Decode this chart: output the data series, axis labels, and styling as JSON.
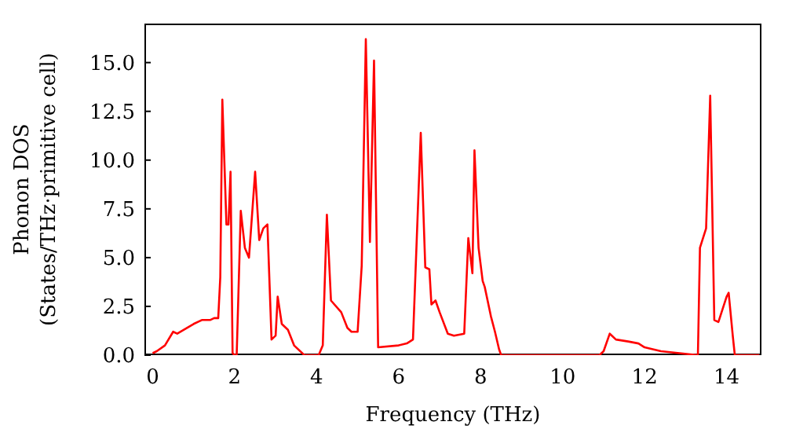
{
  "chart_data": {
    "type": "line",
    "xlabel": "Frequency (THz)",
    "ylabel": "Phonon DOS\n(States/THz·primitive cell)",
    "xlim": [
      -0.2,
      14.85
    ],
    "xticks": [
      0,
      2,
      4,
      6,
      8,
      10,
      12,
      14
    ],
    "ylim": [
      0,
      17
    ],
    "yticks": [
      {
        "value": 0,
        "label": "0.0"
      },
      {
        "value": 2.5,
        "label": "2.5"
      },
      {
        "value": 5,
        "label": "5.0"
      },
      {
        "value": 7.5,
        "label": "7.5"
      },
      {
        "value": 10,
        "label": "10.0"
      },
      {
        "value": 12.5,
        "label": "12.5"
      },
      {
        "value": 15,
        "label": "15.0"
      }
    ],
    "grid": false,
    "legend": false,
    "marker": "none",
    "line_style": "solid",
    "series": [
      {
        "color": "#ff0000",
        "x": [
          0,
          0.1,
          0.3,
          0.5,
          0.6,
          1.0,
          1.2,
          1.4,
          1.5,
          1.6,
          1.65,
          1.7,
          1.8,
          1.85,
          1.9,
          1.95,
          2.0,
          2.05,
          2.15,
          2.25,
          2.35,
          2.5,
          2.6,
          2.7,
          2.8,
          2.9,
          3.0,
          3.05,
          3.15,
          3.3,
          3.45,
          3.7,
          4.05,
          4.15,
          4.25,
          4.35,
          4.6,
          4.75,
          4.85,
          5.0,
          5.1,
          5.2,
          5.3,
          5.4,
          5.5,
          6.0,
          6.2,
          6.35,
          6.54,
          6.65,
          6.75,
          6.8,
          6.9,
          7.0,
          7.2,
          7.35,
          7.6,
          7.7,
          7.8,
          7.85,
          7.95,
          8.05,
          8.1,
          8.25,
          8.35,
          8.45,
          8.5,
          10.9,
          11.0,
          11.15,
          11.3,
          11.6,
          11.85,
          12.0,
          12.4,
          13.3,
          13.35,
          13.5,
          13.6,
          13.7,
          13.8,
          14.0,
          14.05,
          14.15,
          14.2,
          14.8
        ],
        "values": [
          0.1,
          0.2,
          0.5,
          1.2,
          1.1,
          1.6,
          1.8,
          1.8,
          1.9,
          1.9,
          4,
          13.1,
          6.7,
          6.7,
          9.4,
          0.1,
          0,
          0,
          7.4,
          5.5,
          5.0,
          9.4,
          5.9,
          6.5,
          6.7,
          0.8,
          1.0,
          3.0,
          1.6,
          1.3,
          0.5,
          0,
          0,
          0.5,
          7.2,
          2.8,
          2.2,
          1.4,
          1.2,
          1.2,
          4.6,
          16.2,
          5.8,
          15.1,
          0.4,
          0.5,
          0.6,
          0.8,
          11.4,
          4.5,
          4.4,
          2.6,
          2.8,
          2.2,
          1.1,
          1.0,
          1.1,
          6.0,
          4.2,
          10.5,
          5.5,
          3.8,
          3.5,
          2.0,
          1.2,
          0.3,
          0,
          0,
          0.2,
          1.1,
          0.8,
          0.7,
          0.6,
          0.4,
          0.2,
          0.0,
          5.5,
          6.5,
          13.3,
          1.8,
          1.7,
          3.0,
          3.2,
          1,
          0,
          0
        ]
      }
    ]
  }
}
